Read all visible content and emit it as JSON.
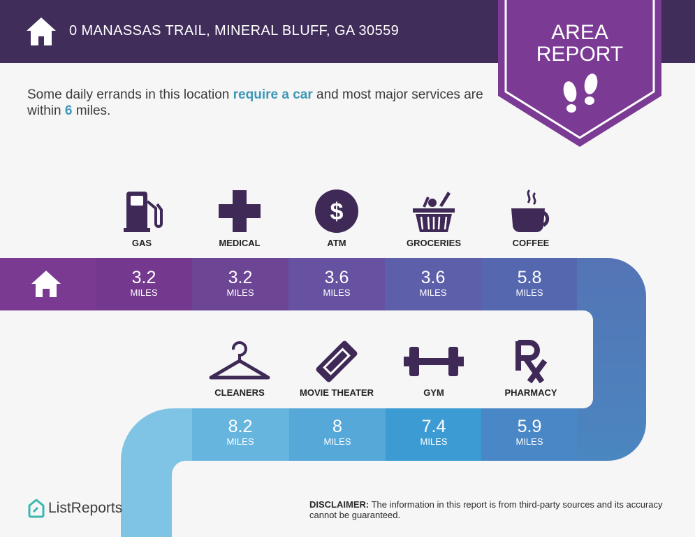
{
  "header": {
    "address": "0 MANASSAS TRAIL, MINERAL BLUFF, GA 30559"
  },
  "badge": {
    "line1": "AREA",
    "line2": "REPORT"
  },
  "intro": {
    "p1": "Some daily errands in this location ",
    "hl1": "require a car",
    "p2": " and most major services are within ",
    "hl2": "6",
    "p3": " miles."
  },
  "services_top": [
    {
      "label": "GAS",
      "distance": "3.2",
      "unit": "MILES",
      "icon": "gas-pump-icon"
    },
    {
      "label": "MEDICAL",
      "distance": "3.2",
      "unit": "MILES",
      "icon": "medical-cross-icon"
    },
    {
      "label": "ATM",
      "distance": "3.6",
      "unit": "MILES",
      "icon": "atm-dollar-icon"
    },
    {
      "label": "GROCERIES",
      "distance": "3.6",
      "unit": "MILES",
      "icon": "grocery-basket-icon"
    },
    {
      "label": "COFFEE",
      "distance": "5.8",
      "unit": "MILES",
      "icon": "coffee-cup-icon"
    }
  ],
  "services_bottom": [
    {
      "label": "CLEANERS",
      "distance": "8.2",
      "unit": "MILES",
      "icon": "hanger-icon"
    },
    {
      "label": "MOVIE THEATER",
      "distance": "8",
      "unit": "MILES",
      "icon": "movie-ticket-icon"
    },
    {
      "label": "GYM",
      "distance": "7.4",
      "unit": "MILES",
      "icon": "dumbbell-icon"
    },
    {
      "label": "PHARMACY",
      "distance": "5.9",
      "unit": "MILES",
      "icon": "rx-icon"
    }
  ],
  "footer": {
    "brand": "ListReports",
    "disclaimer_label": "DISCLAIMER:",
    "disclaimer_text": " The information in this report is from third-party sources and its accuracy cannot be guaranteed."
  },
  "colors": {
    "header": "#402d5a",
    "badge": "#7b3a94",
    "highlight": "#3d97b7",
    "icon": "#3f2a57"
  }
}
